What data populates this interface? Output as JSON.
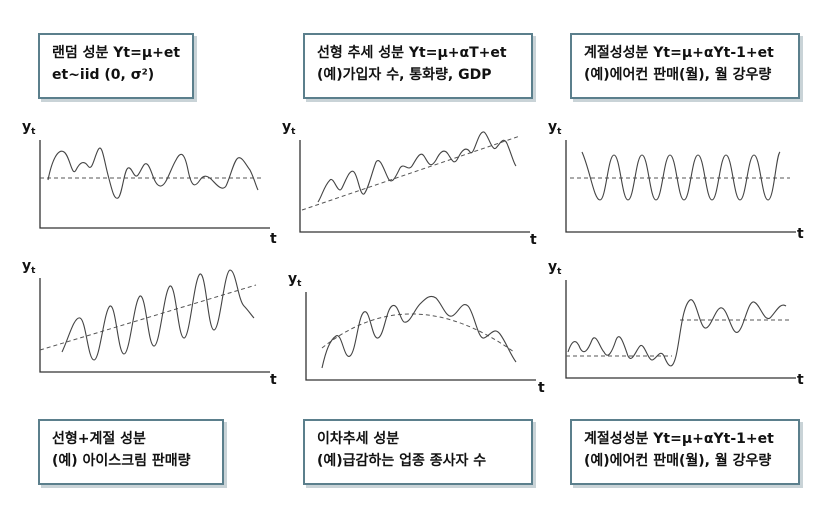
{
  "boxes": {
    "random": {
      "line1": "랜덤 성분 Yt=μ+et",
      "line2": "et~iid (0, σ²)"
    },
    "linear_trend": {
      "line1": "선형 추세 성분 Yt=μ+αT+et",
      "line2": "(예)가입자 수, 통화량, GDP"
    },
    "seasonal_top": {
      "line1": "계절성성분 Yt=μ+αYt-1+et",
      "line2": "(예)에어컨 판매(월), 월 강우량"
    },
    "linear_seasonal": {
      "line1": "선형+계절 성분",
      "line2": "(예) 아이스크림 판매량"
    },
    "quadratic_trend": {
      "line1": "이차추세 성분",
      "line2": "(예)급감하는 업종 종사자 수"
    },
    "seasonal_bottom": {
      "line1": "계절성성분 Yt=μ+αYt-1+et",
      "line2": "(예)에어컨 판매(월), 월 강우량"
    }
  },
  "axes": {
    "y_main": "y",
    "y_sub": "t",
    "x": "t"
  },
  "colors": {
    "box_border": "#5b7f8c",
    "line": "#444444"
  }
}
